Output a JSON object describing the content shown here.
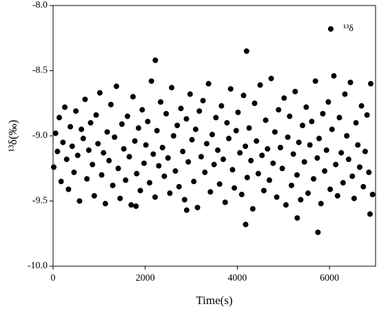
{
  "chart_data": {
    "type": "scatter",
    "xlabel": "Time(s)",
    "ylabel": "¹³δ(‰)",
    "xlim": [
      0,
      7000
    ],
    "ylim": [
      -10,
      -8
    ],
    "xticks": [
      0,
      2000,
      4000,
      6000
    ],
    "yticks": [
      {
        "value": -10,
        "label": "-10.0"
      },
      -9.5,
      {
        "value": -9,
        "label": "-9.0"
      },
      -8.5,
      {
        "value": -8,
        "label": "-8.0"
      }
    ],
    "legend": "upper right",
    "series": [
      {
        "name": "¹³δ",
        "color": "#000000",
        "x": [
          15,
          55,
          95,
          135,
          175,
          215,
          255,
          295,
          335,
          375,
          415,
          455,
          495,
          535,
          575,
          615,
          655,
          695,
          735,
          775,
          815,
          855,
          895,
          935,
          975,
          1015,
          1055,
          1095,
          1135,
          1175,
          1215,
          1255,
          1295,
          1335,
          1375,
          1415,
          1455,
          1495,
          1535,
          1575,
          1615,
          1655,
          1695,
          1735,
          1775,
          1815,
          1855,
          1895,
          1935,
          1975,
          2015,
          2055,
          2095,
          2135,
          2175,
          2215,
          2255,
          2295,
          2335,
          2375,
          2415,
          2455,
          2495,
          2535,
          2575,
          2615,
          2655,
          2695,
          2735,
          2775,
          2815,
          2855,
          2895,
          2935,
          2975,
          3015,
          3055,
          3095,
          3135,
          3175,
          3215,
          3255,
          3295,
          3335,
          3375,
          3415,
          3455,
          3495,
          3535,
          3575,
          3615,
          3655,
          3695,
          3735,
          3775,
          3815,
          3855,
          3895,
          3935,
          3975,
          4015,
          4055,
          4095,
          4135,
          4175,
          4215,
          4255,
          4295,
          4335,
          4375,
          4415,
          4455,
          4495,
          4535,
          4575,
          4615,
          4655,
          4695,
          4735,
          4775,
          4815,
          4855,
          4895,
          4935,
          4975,
          5015,
          5055,
          5095,
          5135,
          5175,
          5215,
          5255,
          5295,
          5335,
          5375,
          5415,
          5455,
          5495,
          5535,
          5575,
          5615,
          5655,
          5695,
          5735,
          5775,
          5815,
          5855,
          5895,
          5935,
          5975,
          6015,
          6055,
          6095,
          6135,
          6175,
          6215,
          6255,
          6295,
          6335,
          6375,
          6415,
          6455,
          6495,
          6535,
          6575,
          6615,
          6655,
          6695,
          6735,
          6775,
          6815,
          6855,
          6895,
          6935,
          2220,
          4200,
          5750,
          4180,
          6880,
          5300,
          2900,
          1800
        ],
        "values": [
          -9.24,
          -8.98,
          -9.12,
          -8.86,
          -9.35,
          -9.05,
          -8.78,
          -9.18,
          -9.41,
          -8.93,
          -9.08,
          -9.28,
          -8.81,
          -9.15,
          -9.5,
          -8.95,
          -9.02,
          -8.72,
          -9.33,
          -9.11,
          -8.9,
          -9.22,
          -9.46,
          -8.84,
          -9.06,
          -8.67,
          -9.3,
          -9.13,
          -9.52,
          -8.97,
          -9.19,
          -8.76,
          -9.38,
          -9.01,
          -8.62,
          -9.25,
          -9.48,
          -8.91,
          -9.1,
          -9.34,
          -8.85,
          -9.16,
          -9.53,
          -8.7,
          -9.04,
          -9.29,
          -8.94,
          -9.42,
          -8.8,
          -9.21,
          -9.07,
          -8.89,
          -9.36,
          -8.58,
          -9.14,
          -9.47,
          -8.96,
          -9.23,
          -8.74,
          -9.09,
          -9.31,
          -8.83,
          -9.17,
          -9.44,
          -8.63,
          -9.0,
          -9.27,
          -8.92,
          -9.39,
          -8.79,
          -9.12,
          -9.49,
          -8.87,
          -9.2,
          -8.68,
          -9.03,
          -9.35,
          -8.95,
          -9.55,
          -8.81,
          -9.16,
          -8.73,
          -9.28,
          -9.06,
          -8.6,
          -9.43,
          -8.99,
          -9.22,
          -8.86,
          -9.11,
          -9.37,
          -8.77,
          -9.18,
          -9.51,
          -8.9,
          -9.02,
          -8.64,
          -9.26,
          -9.4,
          -8.96,
          -8.82,
          -9.13,
          -9.45,
          -8.69,
          -9.08,
          -9.32,
          -8.94,
          -9.19,
          -9.56,
          -8.75,
          -9.04,
          -9.29,
          -8.61,
          -9.15,
          -9.42,
          -8.88,
          -9.1,
          -9.34,
          -8.56,
          -9.21,
          -8.97,
          -9.47,
          -8.8,
          -9.09,
          -9.25,
          -8.71,
          -9.53,
          -9.01,
          -8.85,
          -9.38,
          -9.14,
          -8.66,
          -9.3,
          -9.05,
          -9.49,
          -8.92,
          -9.2,
          -8.78,
          -9.44,
          -9.07,
          -8.89,
          -9.33,
          -8.58,
          -9.17,
          -9.02,
          -9.52,
          -8.83,
          -9.27,
          -9.11,
          -8.74,
          -9.41,
          -8.95,
          -8.54,
          -9.22,
          -9.46,
          -8.86,
          -9.13,
          -9.36,
          -8.68,
          -9.0,
          -9.18,
          -8.59,
          -9.31,
          -9.48,
          -8.9,
          -9.07,
          -9.24,
          -8.77,
          -9.39,
          -9.12,
          -8.84,
          -9.28,
          -8.6,
          -9.45,
          -8.42,
          -8.35,
          -9.74,
          -9.68,
          -9.6,
          -9.63,
          -9.57,
          -9.54
        ]
      }
    ]
  }
}
